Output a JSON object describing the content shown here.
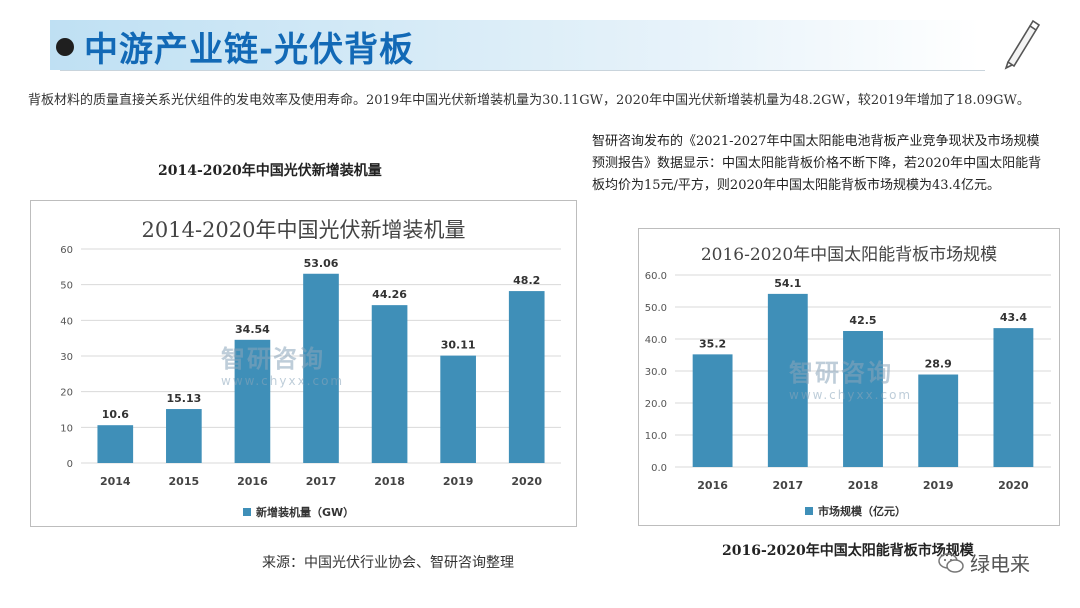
{
  "header": {
    "title": "中游产业链-光伏背板"
  },
  "intro": "背板材料的质量直接关系光伏组件的发电效率及使用寿命。2019年中国光伏新增装机量为30.11GW，2020年中国光伏新增装机量为48.2GW，较2019年增加了18.09GW。",
  "note": "智研咨询发布的《2021-2027年中国太阳能电池背板产业竞争现状及市场规模预测报告》数据显示：中国太阳能背板价格不断下降，若2020年中国太阳能背板均价为15元/平方，则2020年中国太阳能背板市场规模为43.4亿元。",
  "captions": {
    "chart1": "2014-2020年中国光伏新增装机量",
    "chart2": "2016-2020年中国太阳能背板市场规模"
  },
  "source": "来源：中国光伏行业协会、智研咨询整理",
  "watermark": {
    "logo": "智研咨询",
    "url": "www.chyxx.com"
  },
  "brand": {
    "name": "绿电来"
  },
  "colors": {
    "bar": "#3f8fb8",
    "title": "#1269b6"
  },
  "chart_data": [
    {
      "type": "bar",
      "title": "2014-2020年中国光伏新增装机量",
      "categories": [
        "2014",
        "2015",
        "2016",
        "2017",
        "2018",
        "2019",
        "2020"
      ],
      "values": [
        10.6,
        15.13,
        34.54,
        53.06,
        44.26,
        30.11,
        48.2
      ],
      "value_labels": [
        "10.6",
        "15.13",
        "34.54",
        "53.06",
        "44.26",
        "30.11",
        "48.2"
      ],
      "ylim": [
        0,
        60
      ],
      "yticks": [
        "0",
        "10",
        "20",
        "30",
        "40",
        "50",
        "60"
      ],
      "legend": "新增装机量（GW）",
      "legend_position": "bottom"
    },
    {
      "type": "bar",
      "title": "2016-2020年中国太阳能背板市场规模",
      "categories": [
        "2016",
        "2017",
        "2018",
        "2019",
        "2020"
      ],
      "values": [
        35.2,
        54.1,
        42.5,
        28.9,
        43.4
      ],
      "value_labels": [
        "35.2",
        "54.1",
        "42.5",
        "28.9",
        "43.4"
      ],
      "ylim": [
        0,
        60
      ],
      "yticks": [
        "0.0",
        "10.0",
        "20.0",
        "30.0",
        "40.0",
        "50.0",
        "60.0"
      ],
      "legend": "市场规模（亿元）",
      "legend_position": "bottom"
    }
  ]
}
